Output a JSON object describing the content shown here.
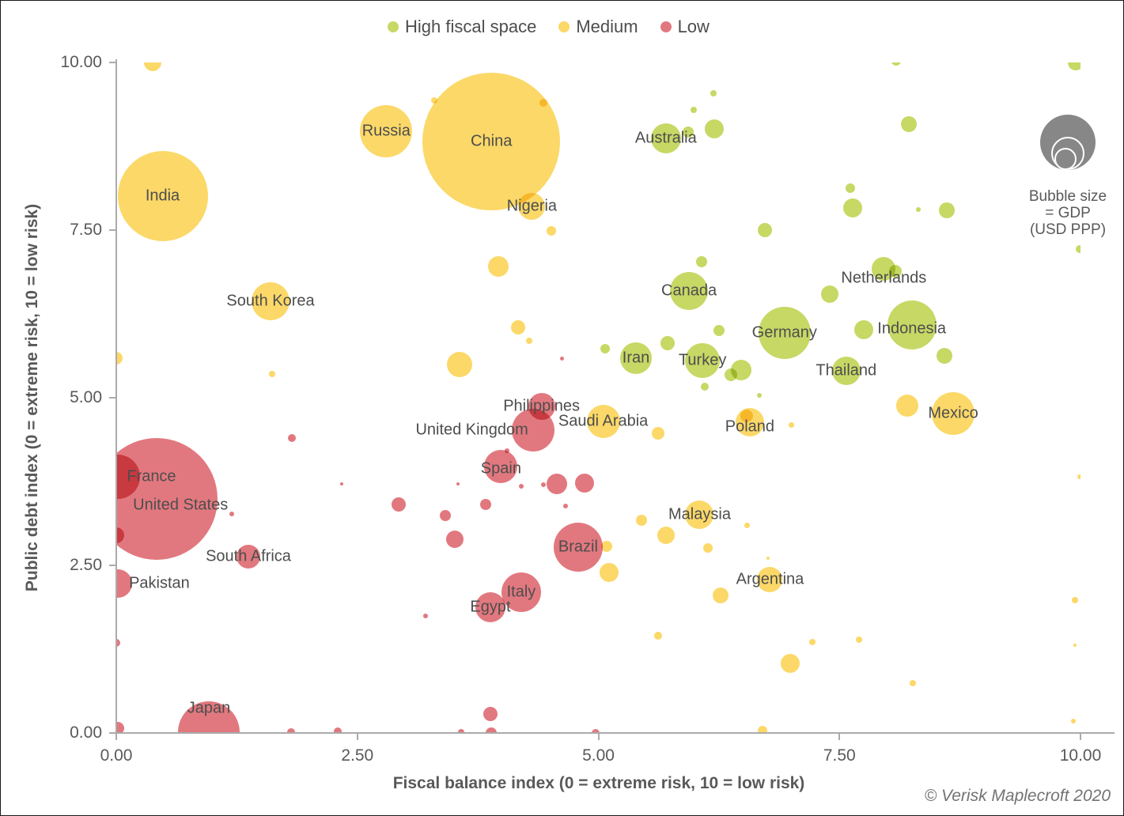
{
  "legend": {
    "items": [
      {
        "label": "High fiscal space",
        "key": "high",
        "color": "#c7d865"
      },
      {
        "label": "Medium",
        "key": "medium",
        "color": "#fbd868"
      },
      {
        "label": "Low",
        "key": "low",
        "color": "#e2787f"
      }
    ]
  },
  "size_legend": {
    "line1": "Bubble size",
    "line2": "= GDP",
    "line3": "(USD PPP)"
  },
  "copyright": "© Verisk Maplecroft 2020",
  "chart_data": {
    "type": "bubble",
    "xlabel": "Fiscal balance index (0 = extreme risk, 10 = low risk)",
    "ylabel": "Public debt index (0 = extreme risk, 10 = low risk)",
    "xlim": [
      0,
      10
    ],
    "ylim": [
      0,
      10
    ],
    "grid": false,
    "legend_position": "top-center",
    "bubble_size_meaning": "GDP (USD PPP)",
    "x_ticks": [
      {
        "v": 0,
        "label": "0.00"
      },
      {
        "v": 2.5,
        "label": "2.50"
      },
      {
        "v": 5,
        "label": "5.00"
      },
      {
        "v": 7.5,
        "label": "7.50"
      },
      {
        "v": 10,
        "label": "10.00"
      }
    ],
    "y_ticks": [
      {
        "v": 0,
        "label": "0.00"
      },
      {
        "v": 2.5,
        "label": "2.50"
      },
      {
        "v": 5,
        "label": "5.00"
      },
      {
        "v": 7.5,
        "label": "7.50"
      },
      {
        "v": 10,
        "label": "10.00"
      }
    ],
    "points": [
      {
        "name": "India",
        "x": 0.48,
        "y": 8.01,
        "r": 57,
        "cat": "medium"
      },
      {
        "name": "Russia",
        "x": 2.8,
        "y": 8.97,
        "r": 33,
        "cat": "medium"
      },
      {
        "name": "China",
        "x": 3.89,
        "y": 8.82,
        "r": 87,
        "cat": "medium"
      },
      {
        "name": "Nigeria",
        "x": 4.31,
        "y": 7.85,
        "r": 17,
        "cat": "medium"
      },
      {
        "name": "Australia",
        "x": 5.7,
        "y": 8.87,
        "r": 19,
        "cat": "high"
      },
      {
        "name": "South Korea",
        "x": 1.6,
        "y": 6.44,
        "r": 24,
        "cat": "medium"
      },
      {
        "name": "Canada",
        "x": 5.94,
        "y": 6.59,
        "r": 24,
        "cat": "high"
      },
      {
        "name": "Netherlands",
        "x": 7.96,
        "y": 6.92,
        "r": 15,
        "cat": "high",
        "ldy": 12
      },
      {
        "name": "Germany",
        "x": 6.93,
        "y": 5.97,
        "r": 33,
        "cat": "high"
      },
      {
        "name": "Indonesia",
        "x": 8.25,
        "y": 6.08,
        "r": 31,
        "cat": "high",
        "ldy": 5
      },
      {
        "name": "Iran",
        "x": 5.39,
        "y": 5.59,
        "r": 20,
        "cat": "high"
      },
      {
        "name": "Turkey",
        "x": 6.08,
        "y": 5.55,
        "r": 22,
        "cat": "high"
      },
      {
        "name": "Thailand",
        "x": 7.57,
        "y": 5.4,
        "r": 18,
        "cat": "high"
      },
      {
        "name": "Mexico",
        "x": 8.68,
        "y": 4.76,
        "r": 27,
        "cat": "medium"
      },
      {
        "name": "Poland",
        "x": 6.57,
        "y": 4.63,
        "r": 18,
        "cat": "medium",
        "ldy": 6
      },
      {
        "name": "Philippines",
        "x": 4.41,
        "y": 4.87,
        "r": 17,
        "cat": "low"
      },
      {
        "name": "Saudi Arabia",
        "x": 5.05,
        "y": 4.65,
        "r": 21,
        "cat": "medium"
      },
      {
        "name": "United Kingdom",
        "x": 4.32,
        "y": 4.52,
        "r": 27,
        "cat": "low",
        "ldx": -77
      },
      {
        "name": "Spain",
        "x": 3.99,
        "y": 3.97,
        "r": 21,
        "cat": "low",
        "ldy": 3
      },
      {
        "name": "France",
        "x": 0.02,
        "y": 3.82,
        "r": 28,
        "cat": "low",
        "ldx": 42
      },
      {
        "name": "United States",
        "x": 0.42,
        "y": 3.49,
        "r": 77,
        "cat": "low",
        "ldx": 30,
        "ldy": 8
      },
      {
        "name": "Malaysia",
        "x": 6.05,
        "y": 3.25,
        "r": 18,
        "cat": "medium"
      },
      {
        "name": "South Africa",
        "x": 1.37,
        "y": 2.63,
        "r": 15,
        "cat": "low"
      },
      {
        "name": "Brazil",
        "x": 4.79,
        "y": 2.77,
        "r": 31,
        "cat": "low"
      },
      {
        "name": "Pakistan",
        "x": 0.02,
        "y": 2.23,
        "r": 18,
        "cat": "low",
        "ldx": 52
      },
      {
        "name": "Argentina",
        "x": 6.78,
        "y": 2.29,
        "r": 16,
        "cat": "medium"
      },
      {
        "name": "Italy",
        "x": 4.2,
        "y": 2.1,
        "r": 25,
        "cat": "low"
      },
      {
        "name": "Egypt",
        "x": 3.88,
        "y": 1.88,
        "r": 19,
        "cat": "low"
      },
      {
        "name": "Japan",
        "x": 0.96,
        "y": 0.01,
        "r": 39,
        "cat": "low",
        "ldy": -30
      },
      {
        "name": "",
        "x": 0.38,
        "y": 10.0,
        "r": 11,
        "cat": "medium"
      },
      {
        "name": "",
        "x": 3.3,
        "y": 9.43,
        "r": 4,
        "cat": "medium"
      },
      {
        "name": "",
        "x": 4.43,
        "y": 9.4,
        "r": 5,
        "cat": "medium"
      },
      {
        "name": "",
        "x": 5.99,
        "y": 9.29,
        "r": 4,
        "cat": "high"
      },
      {
        "name": "",
        "x": 6.19,
        "y": 9.54,
        "r": 4,
        "cat": "high"
      },
      {
        "name": "",
        "x": 6.2,
        "y": 9.01,
        "r": 12,
        "cat": "high"
      },
      {
        "name": "",
        "x": 5.93,
        "y": 8.96,
        "r": 7,
        "cat": "high"
      },
      {
        "name": "",
        "x": 8.09,
        "y": 10.02,
        "r": 6,
        "cat": "high"
      },
      {
        "name": "",
        "x": 8.22,
        "y": 9.08,
        "r": 10,
        "cat": "high"
      },
      {
        "name": "",
        "x": 9.95,
        "y": 10.0,
        "r": 10,
        "cat": "high"
      },
      {
        "name": "",
        "x": 8.61,
        "y": 7.79,
        "r": 10,
        "cat": "high"
      },
      {
        "name": "",
        "x": 8.32,
        "y": 7.81,
        "r": 3,
        "cat": "high"
      },
      {
        "name": "",
        "x": 7.61,
        "y": 8.13,
        "r": 6,
        "cat": "high"
      },
      {
        "name": "",
        "x": 7.64,
        "y": 7.83,
        "r": 12,
        "cat": "high"
      },
      {
        "name": "",
        "x": 6.73,
        "y": 7.5,
        "r": 9,
        "cat": "high"
      },
      {
        "name": "",
        "x": 4.51,
        "y": 7.49,
        "r": 6,
        "cat": "medium"
      },
      {
        "name": "",
        "x": 3.96,
        "y": 6.96,
        "r": 13,
        "cat": "medium"
      },
      {
        "name": "",
        "x": 8.08,
        "y": 6.89,
        "r": 8,
        "cat": "high"
      },
      {
        "name": "",
        "x": 7.4,
        "y": 6.54,
        "r": 11,
        "cat": "high"
      },
      {
        "name": "",
        "x": 6.07,
        "y": 7.03,
        "r": 7,
        "cat": "high"
      },
      {
        "name": "",
        "x": 5.72,
        "y": 5.81,
        "r": 9,
        "cat": "high"
      },
      {
        "name": "",
        "x": 6.25,
        "y": 6.0,
        "r": 7,
        "cat": "high"
      },
      {
        "name": "",
        "x": 6.48,
        "y": 5.41,
        "r": 13,
        "cat": "high"
      },
      {
        "name": "",
        "x": 6.37,
        "y": 5.34,
        "r": 8,
        "cat": "high"
      },
      {
        "name": "",
        "x": 6.1,
        "y": 5.17,
        "r": 5,
        "cat": "high"
      },
      {
        "name": "",
        "x": 6.67,
        "y": 5.04,
        "r": 3,
        "cat": "high"
      },
      {
        "name": "",
        "x": 7.75,
        "y": 6.01,
        "r": 12,
        "cat": "high"
      },
      {
        "name": "",
        "x": 8.59,
        "y": 5.63,
        "r": 10,
        "cat": "high"
      },
      {
        "name": "",
        "x": 8.2,
        "y": 4.88,
        "r": 14,
        "cat": "medium"
      },
      {
        "name": "",
        "x": 3.56,
        "y": 5.5,
        "r": 16,
        "cat": "medium"
      },
      {
        "name": "",
        "x": 4.17,
        "y": 6.05,
        "r": 9,
        "cat": "medium"
      },
      {
        "name": "",
        "x": 4.28,
        "y": 5.85,
        "r": 4,
        "cat": "medium"
      },
      {
        "name": "",
        "x": 4.62,
        "y": 5.58,
        "r": 2.5,
        "cat": "low"
      },
      {
        "name": "",
        "x": 5.07,
        "y": 5.73,
        "r": 6,
        "cat": "high"
      },
      {
        "name": "",
        "x": 5.62,
        "y": 4.47,
        "r": 8,
        "cat": "medium"
      },
      {
        "name": "",
        "x": 7.0,
        "y": 4.59,
        "r": 3.5,
        "cat": "medium"
      },
      {
        "name": "",
        "x": 6.54,
        "y": 4.73,
        "r": 8,
        "cat": "medium"
      },
      {
        "name": "",
        "x": 9.99,
        "y": 7.22,
        "r": 5,
        "cat": "high"
      },
      {
        "name": "",
        "x": 4.57,
        "y": 3.71,
        "r": 13,
        "cat": "low"
      },
      {
        "name": "",
        "x": 4.86,
        "y": 3.73,
        "r": 12,
        "cat": "low"
      },
      {
        "name": "",
        "x": 4.43,
        "y": 3.7,
        "r": 3,
        "cat": "low"
      },
      {
        "name": "",
        "x": 4.2,
        "y": 3.68,
        "r": 3,
        "cat": "low"
      },
      {
        "name": "",
        "x": 4.05,
        "y": 4.21,
        "r": 3,
        "cat": "low"
      },
      {
        "name": "",
        "x": 2.93,
        "y": 3.41,
        "r": 9,
        "cat": "low"
      },
      {
        "name": "",
        "x": 3.41,
        "y": 3.24,
        "r": 7,
        "cat": "low"
      },
      {
        "name": "",
        "x": 3.83,
        "y": 3.41,
        "r": 7,
        "cat": "low"
      },
      {
        "name": "",
        "x": 4.66,
        "y": 3.38,
        "r": 3,
        "cat": "low"
      },
      {
        "name": "",
        "x": 2.34,
        "y": 3.71,
        "r": 2,
        "cat": "low"
      },
      {
        "name": "",
        "x": 3.54,
        "y": 3.71,
        "r": 2,
        "cat": "low"
      },
      {
        "name": "",
        "x": 3.51,
        "y": 2.89,
        "r": 11,
        "cat": "low"
      },
      {
        "name": "",
        "x": 5.09,
        "y": 2.78,
        "r": 7,
        "cat": "medium"
      },
      {
        "name": "",
        "x": 5.11,
        "y": 2.39,
        "r": 12,
        "cat": "medium"
      },
      {
        "name": "",
        "x": 5.7,
        "y": 2.95,
        "r": 11,
        "cat": "medium"
      },
      {
        "name": "",
        "x": 5.45,
        "y": 3.17,
        "r": 7,
        "cat": "medium"
      },
      {
        "name": "",
        "x": 6.14,
        "y": 2.76,
        "r": 6,
        "cat": "medium"
      },
      {
        "name": "",
        "x": 6.54,
        "y": 3.09,
        "r": 3.5,
        "cat": "medium"
      },
      {
        "name": "",
        "x": 6.27,
        "y": 2.05,
        "r": 10,
        "cat": "medium"
      },
      {
        "name": "",
        "x": 6.76,
        "y": 2.61,
        "r": 2,
        "cat": "medium"
      },
      {
        "name": "",
        "x": 6.99,
        "y": 1.04,
        "r": 12,
        "cat": "medium"
      },
      {
        "name": "",
        "x": 7.22,
        "y": 1.36,
        "r": 4,
        "cat": "medium"
      },
      {
        "name": "",
        "x": 7.7,
        "y": 1.39,
        "r": 4,
        "cat": "medium"
      },
      {
        "name": "",
        "x": 8.26,
        "y": 0.74,
        "r": 4,
        "cat": "medium"
      },
      {
        "name": "",
        "x": 9.99,
        "y": 3.82,
        "r": 3,
        "cat": "medium"
      },
      {
        "name": "",
        "x": 9.94,
        "y": 1.98,
        "r": 4,
        "cat": "medium"
      },
      {
        "name": "",
        "x": 9.94,
        "y": 1.31,
        "r": 2,
        "cat": "medium"
      },
      {
        "name": "",
        "x": 9.93,
        "y": 0.18,
        "r": 3,
        "cat": "medium"
      },
      {
        "name": "",
        "x": 6.7,
        "y": 0.04,
        "r": 6,
        "cat": "medium"
      },
      {
        "name": "",
        "x": 3.88,
        "y": 0.28,
        "r": 9,
        "cat": "low"
      },
      {
        "name": "",
        "x": 3.89,
        "y": 0.0,
        "r": 7,
        "cat": "low"
      },
      {
        "name": "",
        "x": 4.97,
        "y": 0.0,
        "r": 5,
        "cat": "low"
      },
      {
        "name": "",
        "x": 1.81,
        "y": 0.01,
        "r": 5,
        "cat": "low"
      },
      {
        "name": "",
        "x": 2.3,
        "y": 0.02,
        "r": 5,
        "cat": "low"
      },
      {
        "name": "",
        "x": 3.58,
        "y": 0.01,
        "r": 4,
        "cat": "low"
      },
      {
        "name": "",
        "x": 0.02,
        "y": 0.07,
        "r": 8,
        "cat": "low"
      },
      {
        "name": "",
        "x": 0.0,
        "y": 1.34,
        "r": 5,
        "cat": "low"
      },
      {
        "name": "",
        "x": 0.0,
        "y": 2.95,
        "r": 10,
        "cat": "low"
      },
      {
        "name": "",
        "x": 0.0,
        "y": 5.59,
        "r": 8,
        "cat": "medium"
      },
      {
        "name": "",
        "x": 1.2,
        "y": 3.27,
        "r": 3,
        "cat": "low"
      },
      {
        "name": "",
        "x": 1.82,
        "y": 4.4,
        "r": 5,
        "cat": "low"
      },
      {
        "name": "",
        "x": 1.62,
        "y": 5.35,
        "r": 4,
        "cat": "medium"
      },
      {
        "name": "",
        "x": 3.21,
        "y": 1.75,
        "r": 3,
        "cat": "low"
      },
      {
        "name": "",
        "x": 5.62,
        "y": 1.45,
        "r": 5,
        "cat": "medium"
      }
    ]
  }
}
